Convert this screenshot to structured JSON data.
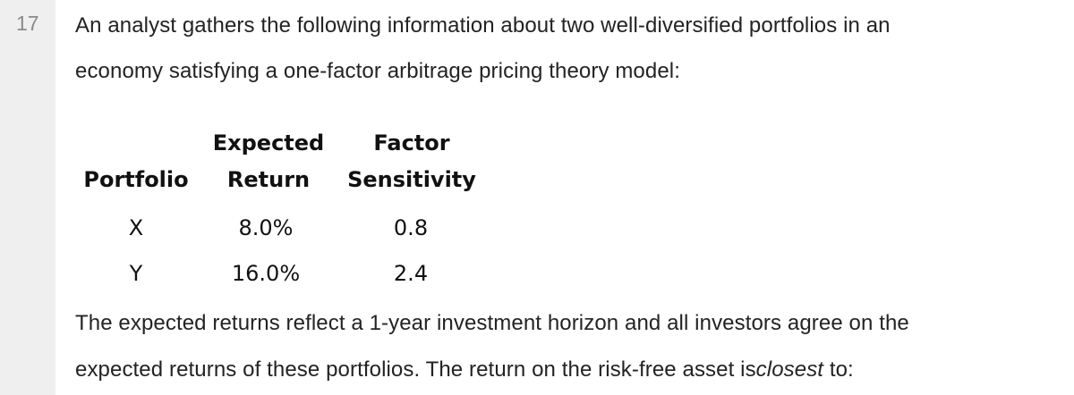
{
  "question": {
    "number": "17",
    "intro_line1": "An analyst gathers the following information about two well-diversified portfolios in an",
    "intro_line2": "economy satisfying a one-factor arbitrage pricing theory model:",
    "outro_line1": "The expected returns reflect a 1-year investment horizon and all investors agree on the",
    "outro_line2_a": "expected returns of these portfolios. The return on the risk-free asset is",
    "outro_line2_em": "closest",
    "outro_line2_b": " to:"
  },
  "table": {
    "headers": {
      "portfolio": "Portfolio",
      "return_top": "Expected",
      "return_bottom": "Return",
      "sensitivity_top": "Factor",
      "sensitivity_bottom": "Sensitivity"
    },
    "rows": [
      {
        "portfolio": "X",
        "expected_return": "8.0%",
        "factor_sensitivity": "0.8"
      },
      {
        "portfolio": "Y",
        "expected_return": "16.0%",
        "factor_sensitivity": "2.4"
      }
    ]
  }
}
